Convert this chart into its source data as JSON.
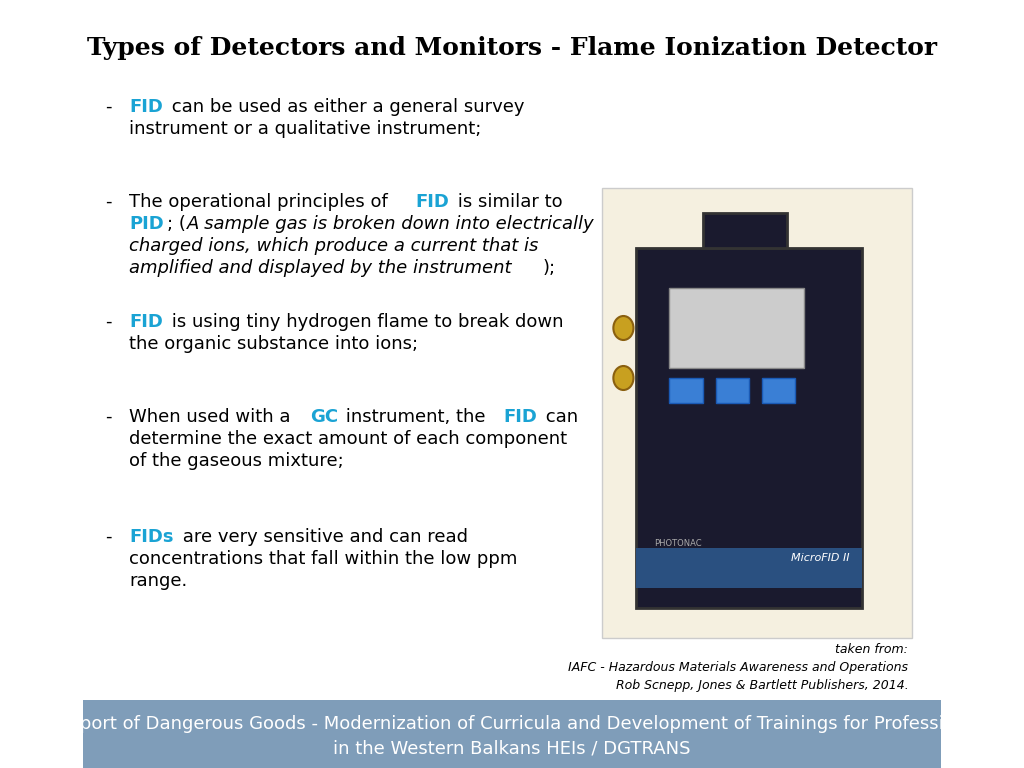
{
  "title": "Types of Detectors and Monitors - Flame Ionization Detector",
  "title_fontsize": 18,
  "title_bold": true,
  "background_color": "#ffffff",
  "footer_color": "#7f9db9",
  "footer_text_line1": "Transport of Dangerous Goods - Modernization of Curricula and Development of Trainings for Professionals",
  "footer_text_line2": "in the Western Balkans HEIs / DGTRANS",
  "footer_fontsize": 13,
  "blue_color": "#1aa3d4",
  "black_color": "#000000",
  "bullet_points": [
    {
      "segments": [
        {
          "text": "FID",
          "bold": true,
          "color": "#1aa3d4"
        },
        {
          "text": " can be used as either a general survey\ninstrument or a qualitative instrument;",
          "bold": false,
          "color": "#000000"
        }
      ]
    },
    {
      "segments": [
        {
          "text": "The operational principles of ",
          "bold": false,
          "color": "#000000"
        },
        {
          "text": "FID",
          "bold": true,
          "color": "#1aa3d4"
        },
        {
          "text": " is similar to\n",
          "bold": false,
          "color": "#000000"
        },
        {
          "text": "PID",
          "bold": true,
          "color": "#1aa3d4"
        },
        {
          "text": "; (",
          "bold": false,
          "color": "#000000"
        },
        {
          "text": "A sample gas is broken down into electrically\ncharged ions, which produce a current that is\namplified and displayed by the instrument",
          "bold": false,
          "italic": true,
          "color": "#000000"
        },
        {
          "text": ");",
          "bold": false,
          "color": "#000000"
        }
      ]
    },
    {
      "segments": [
        {
          "text": "FID",
          "bold": true,
          "color": "#1aa3d4"
        },
        {
          "text": " is using tiny hydrogen flame to break down\nthe organic substance into ions;",
          "bold": false,
          "color": "#000000"
        }
      ]
    },
    {
      "segments": [
        {
          "text": "When used with a ",
          "bold": false,
          "color": "#000000"
        },
        {
          "text": "GC",
          "bold": true,
          "color": "#1aa3d4"
        },
        {
          "text": " instrument, the ",
          "bold": false,
          "color": "#000000"
        },
        {
          "text": "FID",
          "bold": true,
          "color": "#1aa3d4"
        },
        {
          "text": " can\ndetermine the exact amount of each component\nof the gaseous mixture;",
          "bold": false,
          "color": "#000000"
        }
      ]
    },
    {
      "segments": [
        {
          "text": "FIDs",
          "bold": true,
          "color": "#1aa3d4"
        },
        {
          "text": " are very sensitive and can read\nconcentrations that fall within the low ppm\nrange.",
          "bold": false,
          "color": "#000000"
        }
      ]
    }
  ],
  "citation_text": "taken from:\nIAFC - Hazardous Materials Awareness and Operations\nRob Scnepp, Jones & Bartlett Publishers, 2014.",
  "citation_fontsize": 9
}
